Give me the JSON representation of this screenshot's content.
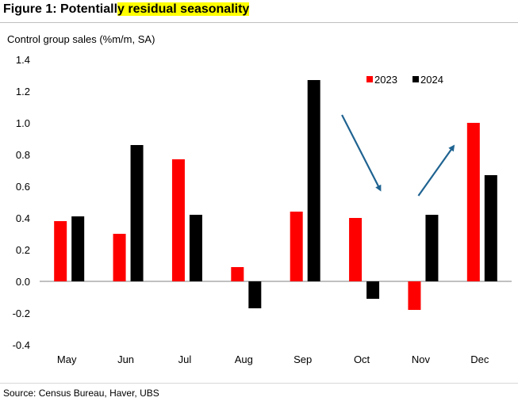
{
  "figure": {
    "title_prefix": "Figure 1: Potentiall",
    "title_highlight": "y residual seasonality",
    "source": "Source: Census Bureau, Haver, UBS"
  },
  "colors": {
    "2023": "#ff0000",
    "2024": "#000000",
    "arrow": "#1f6391",
    "highlight": "#ffff00"
  },
  "chart_data": {
    "type": "bar",
    "ylabel": "Control group sales (%m/m, SA)",
    "categories": [
      "May",
      "Jun",
      "Jul",
      "Aug",
      "Sep",
      "Oct",
      "Nov",
      "Dec"
    ],
    "series": [
      {
        "name": "2023",
        "values": [
          0.38,
          0.3,
          0.77,
          0.09,
          0.44,
          0.4,
          -0.18,
          1.0
        ]
      },
      {
        "name": "2024",
        "values": [
          0.41,
          0.86,
          0.42,
          -0.17,
          1.27,
          -0.11,
          0.42,
          0.67
        ]
      }
    ],
    "ylim": [
      -0.4,
      1.4
    ],
    "yticks": [
      "-0.4",
      "-0.2",
      "0.0",
      "0.2",
      "0.4",
      "0.6",
      "0.8",
      "1.0",
      "1.2",
      "1.4"
    ],
    "grid": false,
    "legend": "top-right",
    "annotations": [
      {
        "type": "arrow",
        "direction": "down",
        "x_from": "Oct",
        "x_to": "Oct",
        "y_from": 1.05,
        "y_to": 0.58
      },
      {
        "type": "arrow",
        "direction": "up",
        "x_from": "Nov",
        "x_to": "Nov",
        "y_from": 0.54,
        "y_to": 0.85
      }
    ]
  }
}
